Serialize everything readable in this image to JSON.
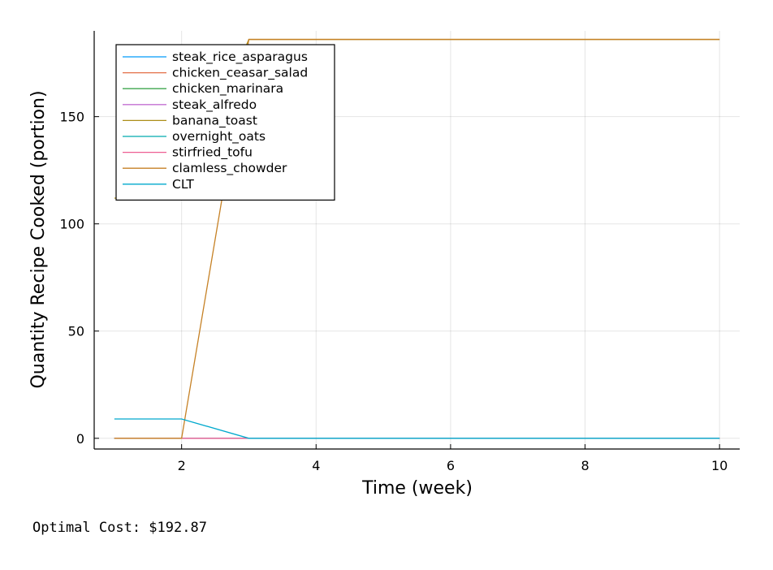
{
  "chart_data": {
    "type": "line",
    "xlabel": "Time (week)",
    "ylabel": "Quantity Recipe Cooked (portion)",
    "xlim": [
      0.7,
      10.3
    ],
    "ylim": [
      -5,
      190
    ],
    "xticks": [
      2,
      4,
      6,
      8,
      10
    ],
    "xtick_labels": [
      "2",
      "4",
      "6",
      "8",
      "10"
    ],
    "yticks": [
      0,
      50,
      100,
      150
    ],
    "ytick_labels": [
      "0",
      "50",
      "100",
      "150"
    ],
    "grid": true,
    "legend_position": "top-left",
    "x": [
      1,
      2,
      3,
      4,
      5,
      6,
      7,
      8,
      9,
      10
    ],
    "series": [
      {
        "name": "steak_rice_asparagus",
        "color": "#009AFA",
        "values": [
          0,
          0,
          0,
          0,
          0,
          0,
          0,
          0,
          0,
          0
        ]
      },
      {
        "name": "chicken_ceasar_salad",
        "color": "#E36F47",
        "values": [
          0,
          0,
          0,
          0,
          0,
          0,
          0,
          0,
          0,
          0
        ]
      },
      {
        "name": "chicken_marinara",
        "color": "#3EA44E",
        "values": [
          0,
          0,
          0,
          0,
          0,
          0,
          0,
          0,
          0,
          0
        ]
      },
      {
        "name": "steak_alfredo",
        "color": "#C371D2",
        "values": [
          0,
          0,
          0,
          0,
          0,
          0,
          0,
          0,
          0,
          0
        ]
      },
      {
        "name": "banana_toast",
        "color": "#AC8E18",
        "values": [
          112,
          112,
          186,
          186,
          186,
          186,
          186,
          186,
          186,
          186
        ]
      },
      {
        "name": "overnight_oats",
        "color": "#00AAAE",
        "values": [
          0,
          0,
          0,
          0,
          0,
          0,
          0,
          0,
          0,
          0
        ]
      },
      {
        "name": "stirfried_tofu",
        "color": "#ED5E93",
        "values": [
          0,
          0,
          0,
          0,
          0,
          0,
          0,
          0,
          0,
          0
        ]
      },
      {
        "name": "clamless_chowder",
        "color": "#C68125",
        "values": [
          0,
          0,
          186,
          186,
          186,
          186,
          186,
          186,
          186,
          186
        ]
      },
      {
        "name": "CLT",
        "color": "#00A9CD",
        "values": [
          9,
          9,
          0,
          0,
          0,
          0,
          0,
          0,
          0,
          0
        ]
      }
    ]
  },
  "caption": "Optimal Cost: $192.87"
}
